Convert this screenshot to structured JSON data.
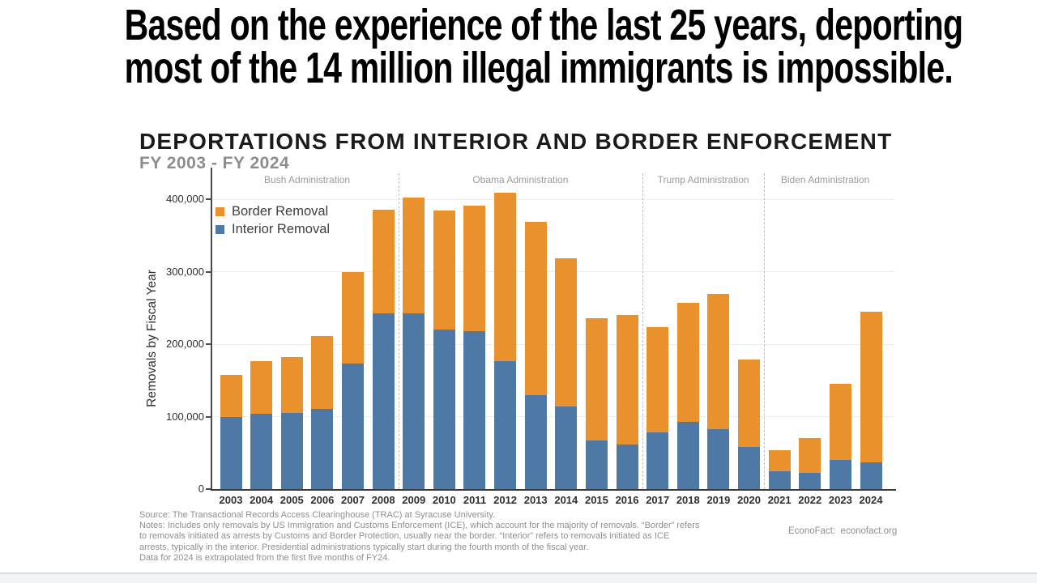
{
  "headline": {
    "line1": "Based on the experience of the last 25 years, deporting",
    "line2": "most of the 14 million illegal immigrants is impossible."
  },
  "chart_data": {
    "type": "bar",
    "stacked": true,
    "title": "DEPORTATIONS FROM INTERIOR AND BORDER ENFORCEMENT",
    "subtitle": "FY 2003 - FY 2024",
    "ylabel": "Removals by Fiscal Year",
    "xlabel": "",
    "ylim": [
      0,
      415000
    ],
    "grid": true,
    "legend_position": "top-left",
    "categories": [
      "2003",
      "2004",
      "2005",
      "2006",
      "2007",
      "2008",
      "2009",
      "2010",
      "2011",
      "2012",
      "2013",
      "2014",
      "2015",
      "2016",
      "2017",
      "2018",
      "2019",
      "2020",
      "2021",
      "2022",
      "2023",
      "2024"
    ],
    "series": [
      {
        "name": "Border Removal",
        "color": "#E8912D",
        "values": [
          58000,
          72000,
          77000,
          100000,
          127000,
          143000,
          160000,
          164000,
          173000,
          232000,
          239000,
          205000,
          169000,
          179000,
          145000,
          164000,
          186000,
          121000,
          29000,
          48000,
          105000,
          208000
        ]
      },
      {
        "name": "Interior Removal",
        "color": "#4E79A7",
        "values": [
          100000,
          104000,
          105000,
          111000,
          173000,
          242000,
          242000,
          220000,
          218000,
          177000,
          130000,
          114000,
          67000,
          61000,
          78000,
          93000,
          83000,
          58000,
          25000,
          22000,
          40000,
          37000
        ]
      }
    ],
    "y_ticks": [
      {
        "value": 0,
        "label": "0"
      },
      {
        "value": 100000,
        "label": "100,000"
      },
      {
        "value": 200000,
        "label": "200,000"
      },
      {
        "value": 300000,
        "label": "300,000"
      },
      {
        "value": 400000,
        "label": "400,000"
      }
    ],
    "administrations": [
      {
        "label": "Bush Administration",
        "start_year": "2003",
        "end_year": "2008"
      },
      {
        "label": "Obama Administration",
        "start_year": "2009",
        "end_year": "2016"
      },
      {
        "label": "Trump Administration",
        "start_year": "2017",
        "end_year": "2020"
      },
      {
        "label": "Biden Administration",
        "start_year": "2021",
        "end_year": "2024"
      }
    ]
  },
  "notes_lines": [
    "Source: The Transactional Records Access Clearinghouse (TRAC) at Syracuse University.",
    "Notes: Includes only removals by US Immigration and Customs Enforcement (ICE), which account for the majority of removals. “Border” refers",
    "to removals initiated as arrests by Customs and Border Protection, usually near the border. “Interior” refers to removals initiated as ICE",
    "arrests, typically in the interior. Presidential administrations typically start during the fourth month of the fiscal year.",
    "Data for 2024 is extrapolated from the first five months of FY24."
  ],
  "credit": "EconoFact:  econofact.org"
}
